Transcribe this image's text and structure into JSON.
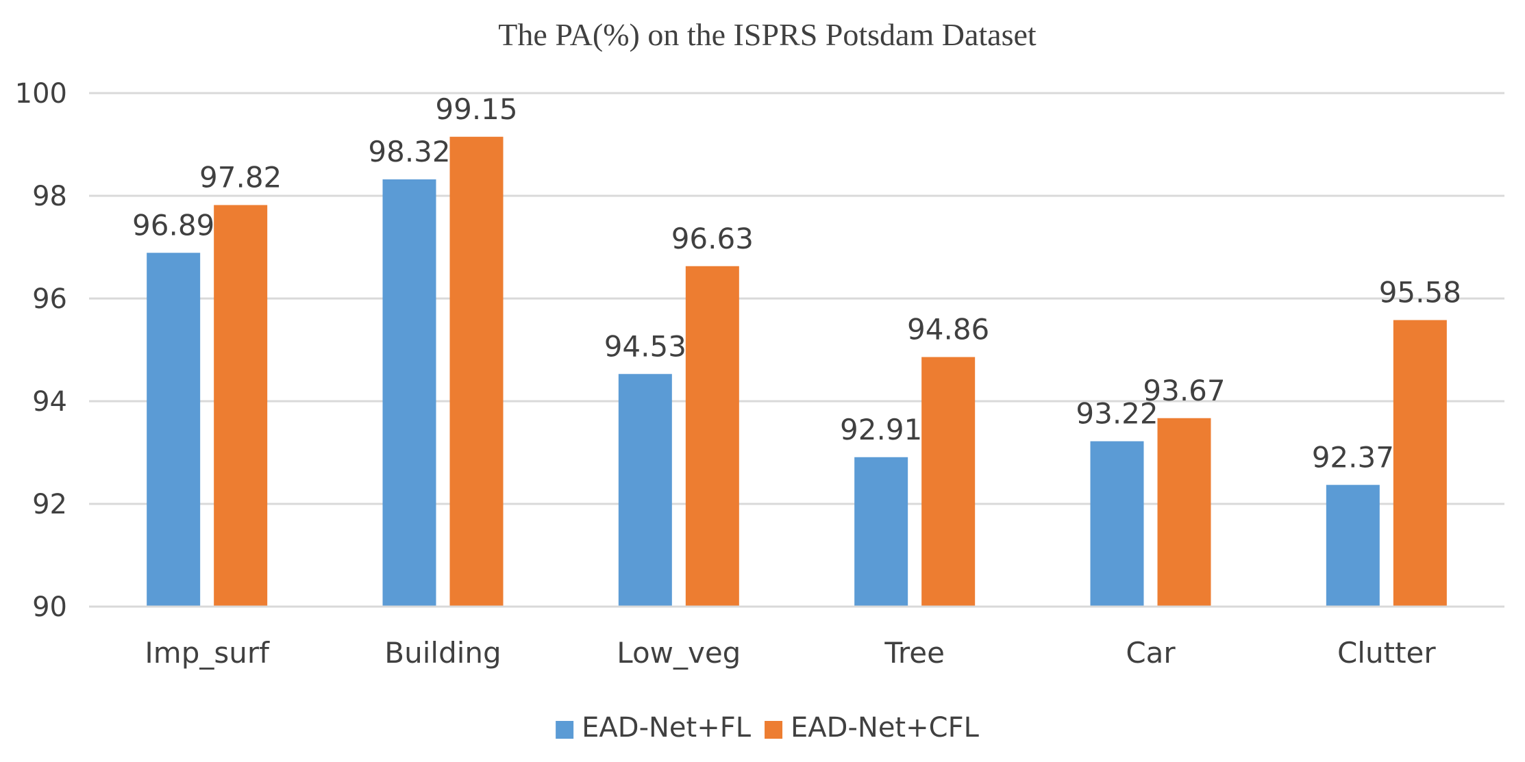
{
  "chart_data": {
    "type": "bar",
    "title": "The PA(%) on the ISPRS Potsdam Dataset",
    "xlabel": "",
    "ylabel": "",
    "categories": [
      "Imp_surf",
      "Building",
      "Low_veg",
      "Tree",
      "Car",
      "Clutter"
    ],
    "series": [
      {
        "name": "EAD-Net+FL",
        "color": "#5b9bd5",
        "values": [
          96.89,
          98.32,
          94.53,
          92.91,
          93.22,
          92.37
        ]
      },
      {
        "name": "EAD-Net+CFL",
        "color": "#ed7d31",
        "values": [
          97.82,
          99.15,
          96.63,
          94.86,
          93.67,
          95.58
        ]
      }
    ],
    "ylim": [
      90,
      100
    ],
    "yticks": [
      90,
      92,
      94,
      96,
      98,
      100
    ],
    "grid": true,
    "legend_position": "bottom-center"
  }
}
